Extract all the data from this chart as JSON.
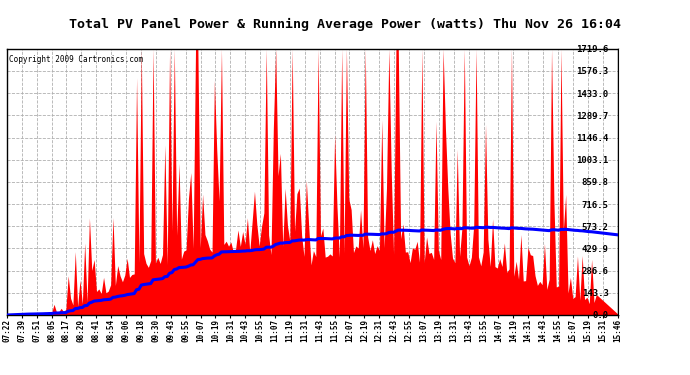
{
  "title": "Total PV Panel Power & Running Average Power (watts) Thu Nov 26 16:04",
  "copyright": "Copyright 2009 Cartronics.com",
  "y_max": 1719.6,
  "y_labels": [
    1719.6,
    1576.3,
    1433.0,
    1289.7,
    1146.4,
    1003.1,
    859.8,
    716.5,
    573.2,
    429.9,
    286.6,
    143.3,
    0.0
  ],
  "x_labels": [
    "07:22",
    "07:39",
    "07:51",
    "08:05",
    "08:17",
    "08:29",
    "08:41",
    "08:54",
    "09:06",
    "09:18",
    "09:30",
    "09:43",
    "09:55",
    "10:07",
    "10:19",
    "10:31",
    "10:43",
    "10:55",
    "11:07",
    "11:19",
    "11:31",
    "11:43",
    "11:55",
    "12:07",
    "12:19",
    "12:31",
    "12:43",
    "12:55",
    "13:07",
    "13:19",
    "13:31",
    "13:43",
    "13:55",
    "14:07",
    "14:19",
    "14:31",
    "14:43",
    "14:55",
    "15:07",
    "15:19",
    "15:31",
    "15:46"
  ],
  "bg_color": "#ffffff",
  "plot_bg_color": "#ffffff",
  "bar_color": "#ff0000",
  "line_color": "#0000ff",
  "grid_color": "#b0b0b0",
  "title_bg": "#c8c8c8",
  "border_color": "#000000"
}
